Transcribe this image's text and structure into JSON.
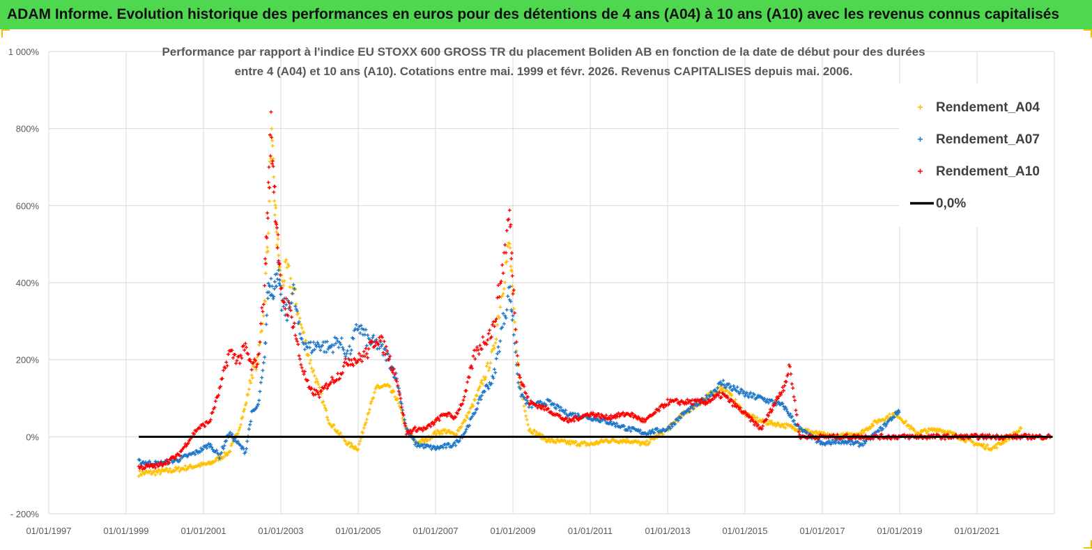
{
  "banner": {
    "title": "ADAM Informe. Evolution historique des performances en euros pour des détentions de 4 ans (A04) à 10 ans (A10) avec les revenus connus capitalisés"
  },
  "colors": {
    "banner_bg": "#4fd84f",
    "A04": "#ffc000",
    "A07": "#1f77c8",
    "A10": "#ff0000",
    "zero": "#000000",
    "grid": "#d9d9d9"
  },
  "chart_data": {
    "type": "scatter",
    "title_line1": "Performance par rapport à l'indice EU STOXX 600 GROSS TR  du placement Boliden AB en fonction de la date de début pour des durées",
    "title_line2": "entre 4 (A04) et 10 ans (A10). Cotations entre mai. 1999 et févr. 2026. Revenus CAPITALISES depuis mai. 2006.",
    "xlim": [
      "1997-01-01",
      "2023-01-01"
    ],
    "ylim": [
      -200,
      1000
    ],
    "grid": "vertical and horizontal",
    "legend_position": "top-right",
    "x_ticks": [
      "01/01/1997",
      "01/01/1999",
      "01/01/2001",
      "01/01/2003",
      "01/01/2005",
      "01/01/2007",
      "01/01/2009",
      "01/01/2011",
      "01/01/2013",
      "01/01/2015",
      "01/01/2017",
      "01/01/2019",
      "01/01/2021"
    ],
    "y_ticks": [
      {
        "value": -200,
        "label": "- 200%"
      },
      {
        "value": 0,
        "label": "0%"
      },
      {
        "value": 200,
        "label": "200%"
      },
      {
        "value": 400,
        "label": "400%"
      },
      {
        "value": 600,
        "label": "600%"
      },
      {
        "value": 800,
        "label": "800%"
      },
      {
        "value": 1000,
        "label": "1 000%"
      }
    ],
    "series": [
      {
        "name": "Rendement_A04",
        "color": "#ffc000",
        "marker": "+",
        "points": [
          [
            "1999-05-01",
            -95
          ],
          [
            "1999-11-01",
            -92
          ],
          [
            "2000-05-01",
            -85
          ],
          [
            "2000-11-01",
            -75
          ],
          [
            "2001-03-01",
            -70
          ],
          [
            "2001-06-01",
            -55
          ],
          [
            "2001-09-01",
            -40
          ],
          [
            "2001-12-01",
            20
          ],
          [
            "2002-02-01",
            80
          ],
          [
            "2002-04-01",
            160
          ],
          [
            "2002-06-01",
            200
          ],
          [
            "2002-08-01",
            350
          ],
          [
            "2002-09-01",
            520
          ],
          [
            "2002-10-01",
            780
          ],
          [
            "2002-11-01",
            620
          ],
          [
            "2002-12-01",
            500
          ],
          [
            "2003-01-01",
            400
          ],
          [
            "2003-03-01",
            430
          ],
          [
            "2003-05-01",
            380
          ],
          [
            "2003-07-01",
            300
          ],
          [
            "2003-10-01",
            200
          ],
          [
            "2004-01-01",
            120
          ],
          [
            "2004-04-01",
            40
          ],
          [
            "2004-07-01",
            10
          ],
          [
            "2004-10-01",
            -20
          ],
          [
            "2005-01-01",
            -30
          ],
          [
            "2005-04-01",
            60
          ],
          [
            "2005-07-01",
            130
          ],
          [
            "2005-10-01",
            130
          ],
          [
            "2006-01-01",
            100
          ],
          [
            "2006-04-01",
            20
          ],
          [
            "2006-07-01",
            -15
          ],
          [
            "2006-10-01",
            -10
          ],
          [
            "2007-01-01",
            10
          ],
          [
            "2007-04-01",
            15
          ],
          [
            "2007-07-01",
            5
          ],
          [
            "2007-10-01",
            40
          ],
          [
            "2008-01-01",
            90
          ],
          [
            "2008-04-01",
            150
          ],
          [
            "2008-07-01",
            220
          ],
          [
            "2008-10-01",
            400
          ],
          [
            "2008-12-01",
            500
          ],
          [
            "2009-01-01",
            350
          ],
          [
            "2009-03-01",
            150
          ],
          [
            "2009-06-01",
            20
          ],
          [
            "2009-12-01",
            -10
          ],
          [
            "2010-06-01",
            -15
          ],
          [
            "2011-01-01",
            -20
          ],
          [
            "2011-06-01",
            -10
          ],
          [
            "2012-01-01",
            -10
          ],
          [
            "2012-06-01",
            -20
          ],
          [
            "2013-01-01",
            20
          ],
          [
            "2013-06-01",
            60
          ],
          [
            "2014-01-01",
            100
          ],
          [
            "2014-06-01",
            130
          ],
          [
            "2015-01-01",
            60
          ],
          [
            "2015-06-01",
            40
          ],
          [
            "2016-01-01",
            30
          ],
          [
            "2016-06-01",
            20
          ],
          [
            "2017-01-01",
            5
          ],
          [
            "2017-06-01",
            0
          ],
          [
            "2018-01-01",
            10
          ],
          [
            "2018-06-01",
            40
          ],
          [
            "2018-12-01",
            60
          ],
          [
            "2019-06-01",
            10
          ],
          [
            "2020-01-01",
            20
          ],
          [
            "2020-06-01",
            5
          ],
          [
            "2021-01-01",
            -20
          ],
          [
            "2021-06-01",
            -30
          ],
          [
            "2022-01-01",
            10
          ],
          [
            "2022-03-01",
            20
          ]
        ]
      },
      {
        "name": "Rendement_A07",
        "color": "#1f77c8",
        "marker": "+",
        "points": [
          [
            "1999-05-01",
            -65
          ],
          [
            "1999-11-01",
            -70
          ],
          [
            "2000-05-01",
            -60
          ],
          [
            "2000-11-01",
            -40
          ],
          [
            "2001-03-01",
            -20
          ],
          [
            "2001-06-01",
            -50
          ],
          [
            "2001-09-01",
            10
          ],
          [
            "2001-12-01",
            -20
          ],
          [
            "2002-02-01",
            -40
          ],
          [
            "2002-04-01",
            60
          ],
          [
            "2002-06-01",
            80
          ],
          [
            "2002-08-01",
            200
          ],
          [
            "2002-09-01",
            380
          ],
          [
            "2002-10-01",
            400
          ],
          [
            "2002-11-01",
            380
          ],
          [
            "2002-12-01",
            440
          ],
          [
            "2003-01-01",
            350
          ],
          [
            "2003-03-01",
            320
          ],
          [
            "2003-05-01",
            380
          ],
          [
            "2003-07-01",
            260
          ],
          [
            "2003-10-01",
            230
          ],
          [
            "2004-01-01",
            240
          ],
          [
            "2004-04-01",
            230
          ],
          [
            "2004-07-01",
            250
          ],
          [
            "2004-10-01",
            210
          ],
          [
            "2005-01-01",
            290
          ],
          [
            "2005-04-01",
            250
          ],
          [
            "2005-07-01",
            240
          ],
          [
            "2005-10-01",
            210
          ],
          [
            "2006-01-01",
            150
          ],
          [
            "2006-04-01",
            20
          ],
          [
            "2006-07-01",
            -20
          ],
          [
            "2006-10-01",
            -25
          ],
          [
            "2007-01-01",
            -30
          ],
          [
            "2007-04-01",
            -25
          ],
          [
            "2007-07-01",
            -20
          ],
          [
            "2007-10-01",
            10
          ],
          [
            "2008-01-01",
            60
          ],
          [
            "2008-04-01",
            120
          ],
          [
            "2008-07-01",
            150
          ],
          [
            "2008-10-01",
            300
          ],
          [
            "2008-12-01",
            380
          ],
          [
            "2009-01-01",
            300
          ],
          [
            "2009-03-01",
            120
          ],
          [
            "2009-06-01",
            80
          ],
          [
            "2009-12-01",
            90
          ],
          [
            "2010-06-01",
            60
          ],
          [
            "2011-01-01",
            50
          ],
          [
            "2011-06-01",
            40
          ],
          [
            "2012-01-01",
            20
          ],
          [
            "2012-06-01",
            10
          ],
          [
            "2013-01-01",
            20
          ],
          [
            "2013-06-01",
            60
          ],
          [
            "2014-01-01",
            100
          ],
          [
            "2014-06-01",
            140
          ],
          [
            "2015-01-01",
            110
          ],
          [
            "2015-06-01",
            100
          ],
          [
            "2016-01-01",
            80
          ],
          [
            "2016-06-01",
            20
          ],
          [
            "2017-01-01",
            -20
          ],
          [
            "2017-06-01",
            -10
          ],
          [
            "2018-01-01",
            -20
          ],
          [
            "2018-06-01",
            10
          ],
          [
            "2018-12-01",
            60
          ],
          [
            "2019-01-01",
            70
          ]
        ]
      },
      {
        "name": "Rendement_A10",
        "color": "#ff0000",
        "marker": "+",
        "points": [
          [
            "1999-05-01",
            -80
          ],
          [
            "1999-11-01",
            -75
          ],
          [
            "2000-05-01",
            -50
          ],
          [
            "2000-11-01",
            20
          ],
          [
            "2001-03-01",
            40
          ],
          [
            "2001-06-01",
            120
          ],
          [
            "2001-09-01",
            220
          ],
          [
            "2001-12-01",
            200
          ],
          [
            "2002-02-01",
            230
          ],
          [
            "2002-04-01",
            180
          ],
          [
            "2002-06-01",
            200
          ],
          [
            "2002-08-01",
            400
          ],
          [
            "2002-09-01",
            600
          ],
          [
            "2002-10-01",
            800
          ],
          [
            "2002-11-01",
            650
          ],
          [
            "2002-12-01",
            520
          ],
          [
            "2003-01-01",
            370
          ],
          [
            "2003-03-01",
            340
          ],
          [
            "2003-05-01",
            300
          ],
          [
            "2003-07-01",
            200
          ],
          [
            "2003-10-01",
            120
          ],
          [
            "2004-01-01",
            110
          ],
          [
            "2004-04-01",
            140
          ],
          [
            "2004-07-01",
            160
          ],
          [
            "2004-10-01",
            200
          ],
          [
            "2005-01-01",
            200
          ],
          [
            "2005-04-01",
            220
          ],
          [
            "2005-07-01",
            260
          ],
          [
            "2005-10-01",
            220
          ],
          [
            "2006-01-01",
            150
          ],
          [
            "2006-04-01",
            10
          ],
          [
            "2006-07-01",
            20
          ],
          [
            "2006-10-01",
            20
          ],
          [
            "2007-01-01",
            40
          ],
          [
            "2007-04-01",
            60
          ],
          [
            "2007-07-01",
            50
          ],
          [
            "2007-10-01",
            100
          ],
          [
            "2008-01-01",
            210
          ],
          [
            "2008-04-01",
            250
          ],
          [
            "2008-07-01",
            280
          ],
          [
            "2008-10-01",
            450
          ],
          [
            "2008-12-01",
            580
          ],
          [
            "2009-01-01",
            400
          ],
          [
            "2009-03-01",
            160
          ],
          [
            "2009-06-01",
            90
          ],
          [
            "2009-12-01",
            70
          ],
          [
            "2010-06-01",
            40
          ],
          [
            "2011-01-01",
            60
          ],
          [
            "2011-06-01",
            50
          ],
          [
            "2012-01-01",
            60
          ],
          [
            "2012-06-01",
            40
          ],
          [
            "2013-01-01",
            90
          ],
          [
            "2013-06-01",
            90
          ],
          [
            "2014-01-01",
            90
          ],
          [
            "2014-06-01",
            110
          ],
          [
            "2015-01-01",
            60
          ],
          [
            "2015-06-01",
            20
          ],
          [
            "2016-01-01",
            130
          ],
          [
            "2016-03-01",
            180
          ],
          [
            "2016-06-01",
            0
          ],
          [
            "2017-06-01",
            0
          ],
          [
            "2018-06-01",
            0
          ],
          [
            "2019-06-01",
            0
          ],
          [
            "2020-06-01",
            0
          ],
          [
            "2021-06-01",
            0
          ],
          [
            "2022-06-01",
            0
          ],
          [
            "2022-12-01",
            0
          ]
        ]
      },
      {
        "name": "0,0%",
        "color": "#000000",
        "type": "line",
        "points": [
          [
            "1999-05-01",
            0
          ],
          [
            "2022-12-15",
            0
          ]
        ]
      }
    ]
  }
}
